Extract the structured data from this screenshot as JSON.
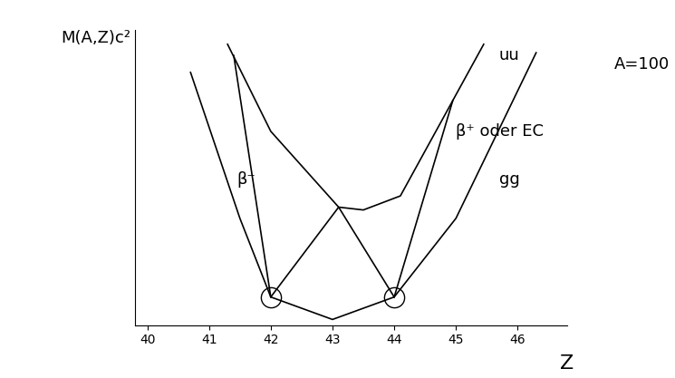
{
  "chart_data": {
    "type": "line",
    "x_label": "Z",
    "y_label": "M(A,Z)c²",
    "note": "A=100",
    "xlim": [
      39.8,
      46.8
    ],
    "xticks": [
      40,
      41,
      42,
      43,
      44,
      45,
      46
    ],
    "ylim": [
      0,
      10.5
    ],
    "yticks": [],
    "tick_labels": "x",
    "grid": false,
    "series": [
      {
        "x": [
          40.7,
          41.5,
          42,
          43,
          44,
          45,
          46.3
        ],
        "values": [
          9.0,
          3.8,
          1.0,
          0.2,
          1.0,
          3.8,
          9.7
        ],
        "color": "#000000",
        "line_style": "solid",
        "marker": "none"
      },
      {
        "x": [
          41.3,
          42.0,
          43.1,
          43.5,
          44.1,
          44.95,
          45.45
        ],
        "values": [
          10.0,
          6.9,
          4.2,
          4.1,
          4.6,
          8.0,
          10.0
        ],
        "color": "#000000",
        "line_style": "solid",
        "marker": "none"
      },
      {
        "x": [
          41.4,
          42.0
        ],
        "values": [
          9.6,
          1.0
        ],
        "color": "#000000",
        "line_style": "solid",
        "marker": "none"
      },
      {
        "x": [
          42.0,
          43.1,
          44.0
        ],
        "values": [
          1.0,
          4.2,
          1.0
        ],
        "color": "#000000",
        "line_style": "solid",
        "marker": "none"
      },
      {
        "x": [
          44.95,
          44.0
        ],
        "values": [
          8.0,
          1.0
        ],
        "color": "#000000",
        "line_style": "solid",
        "marker": "none"
      },
      {
        "x": [
          42.0,
          44.0
        ],
        "values": [
          1.0,
          1.0
        ],
        "color": "#000000",
        "line_style": "none",
        "marker": "circle"
      }
    ],
    "annotations": [
      {
        "text": "uu",
        "x": 45.7,
        "y": 9.6
      },
      {
        "text": "gg",
        "x": 45.7,
        "y": 5.2
      },
      {
        "text": "β⁻",
        "x": 41.45,
        "y": 5.2
      },
      {
        "text": "β⁺ oder EC",
        "x": 45.0,
        "y": 6.9
      }
    ]
  }
}
